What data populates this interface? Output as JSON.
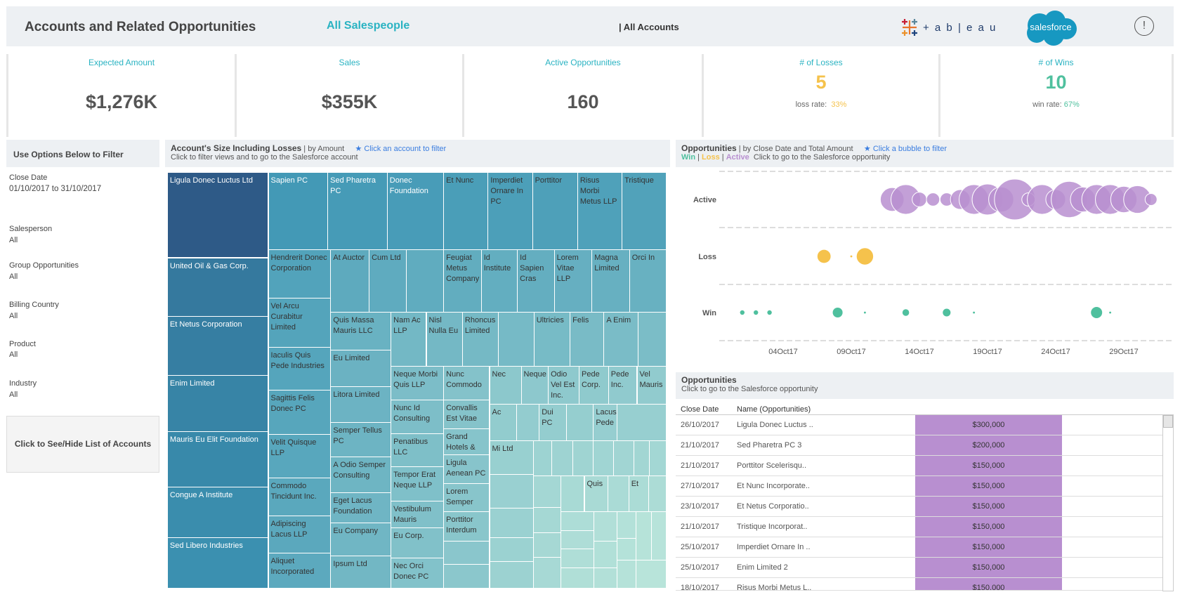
{
  "header": {
    "title": "Accounts and Related Opportunities",
    "salespeople": "All Salespeople",
    "accounts": "| All Accounts",
    "tableau_logo": "+ a b | e a u",
    "salesforce_logo": "salesforce",
    "info": "!"
  },
  "kpis": {
    "expected": {
      "label": "Expected Amount",
      "value": "$1,276K"
    },
    "sales": {
      "label": "Sales",
      "value": "$355K"
    },
    "active": {
      "label": "Active Opportunities",
      "value": "160"
    },
    "losses": {
      "label": "# of Losses",
      "value": "5",
      "rate_label": "loss rate:",
      "rate": "33%"
    },
    "wins": {
      "label": "# of Wins",
      "value": "10",
      "rate_label": "win rate:",
      "rate": "67%"
    }
  },
  "colors": {
    "accent": "#2ab3c2",
    "win": "#4fc09e",
    "loss": "#f5c24c",
    "active": "#b88fd0",
    "dark_tile": "#2e5a87",
    "light_tile": "#b5e2d7"
  },
  "filters": {
    "title": "Use Options Below to Filter",
    "items": [
      {
        "label": "Close Date",
        "value": "01/10/2017 to 31/10/2017"
      },
      {
        "label": "Salesperson",
        "value": "All"
      },
      {
        "label": "Group Opportunities",
        "value": "All"
      },
      {
        "label": "Billing Country",
        "value": "All"
      },
      {
        "label": "Product",
        "value": "All"
      },
      {
        "label": "Industry",
        "value": "All"
      }
    ],
    "toggle": "Click to See/Hide List of Accounts"
  },
  "treemap": {
    "title": "Account's Size Including Losses",
    "subtitle": "| by Amount",
    "hint": "Click an account to filter",
    "description": "Click to filter views and to go to the Salesforce account",
    "cells": [
      "Ligula Donec Luctus Ltd",
      "United Oil & Gas Corp.",
      "Et Netus Corporation",
      "Enim Limited",
      "Mauris Eu Elit Foundation",
      "Congue A Institute",
      "Sed Libero Industries",
      "Sapien PC",
      "Sed Pharetra PC",
      "Donec Foundation",
      "Et Nunc",
      "Imperdiet Ornare In PC",
      "Porttitor",
      "Risus Morbi Metus LLP",
      "Tristique",
      "Hendrerit Donec Corporation",
      "Vel Arcu Curabitur Limited",
      "Iaculis Quis Pede Industries",
      "Sagittis Felis Donec PC",
      "Velit Quisque LLP",
      "Commodo Tincidunt Inc.",
      "Adipiscing Lacus LLP",
      "Aliquet Incorporated",
      "At Auctor",
      "Cum Ltd",
      "",
      "Feugiat Metus Company",
      "Id Institute",
      "Id Sapien Cras",
      "Lorem Vitae LLP",
      "Magna Limited",
      "Orci In",
      "Quis Massa Mauris LLC",
      "Eu Limited",
      "Litora Limited",
      "Semper Tellus PC",
      "A Odio Semper Consulting",
      "Eget Lacus Foundation",
      "Eu Company",
      "Ipsum Ltd",
      "Nam Ac LLP",
      "Nisl Nulla Eu",
      "Rhoncus Limited",
      "",
      "Ultricies",
      "Felis",
      "A Enim",
      "",
      "Neque Morbi Quis LLP",
      "Nunc Id Consulting",
      "Penatibus LLC",
      "Tempor Erat Neque LLP",
      "Vestibulum Mauris",
      "Eu Corp.",
      "Nec Orci Donec PC",
      "Nunc Commodo",
      "Convallis Est Vitae",
      "Grand Hotels &",
      "Ligula Aenean PC",
      "Lorem Semper",
      "Porttitor Interdum",
      "",
      "",
      "Nec",
      "Neque",
      "Odio Vel Est Inc.",
      "Pede Corp.",
      "Pede Inc.",
      "Vel Mauris",
      "Ac",
      "",
      "Dui PC",
      "",
      "Lacus Pede",
      "",
      "Mi Ltd",
      "",
      "",
      "",
      "",
      "",
      "",
      "",
      "",
      "",
      "",
      "",
      "",
      "",
      "",
      "",
      "",
      "Quis",
      "",
      "Et",
      "",
      "",
      "",
      "",
      "",
      "",
      "",
      "",
      "",
      "",
      "",
      "",
      ""
    ]
  },
  "bubbles": {
    "title": "Opportunities",
    "subtitle": "| by Close Date and Total Amount",
    "hint": "Click a bubble to filter",
    "legend": {
      "win": "Win",
      "loss": "Loss",
      "active": "Active",
      "sep": "|"
    },
    "description": "Click to go to the Salesforce opportunity"
  },
  "chart_data": {
    "type": "scatter",
    "title": "Opportunities",
    "xlabel": "",
    "ylabel": "",
    "categories": [
      "Active",
      "Loss",
      "Win"
    ],
    "xticks": [
      "04Oct17",
      "09Oct17",
      "14Oct17",
      "19Oct17",
      "24Oct17",
      "29Oct17"
    ],
    "x_unit": "day of October 2017",
    "size_unit": "total amount ($K, estimated)",
    "grid": "dashed horizontal",
    "series": [
      {
        "name": "Active",
        "color": "#b88fd0",
        "points": [
          [
            12,
            138
          ],
          [
            13,
            216
          ],
          [
            14,
            52
          ],
          [
            15,
            43
          ],
          [
            16,
            43
          ],
          [
            17,
            96
          ],
          [
            18,
            216
          ],
          [
            19,
            235
          ],
          [
            20,
            154
          ],
          [
            21,
            409
          ],
          [
            22,
            43
          ],
          [
            23,
            216
          ],
          [
            24,
            96
          ],
          [
            25,
            322
          ],
          [
            26,
            154
          ],
          [
            27,
            216
          ],
          [
            28,
            216
          ],
          [
            29,
            170
          ],
          [
            30,
            188
          ],
          [
            31,
            35
          ]
        ]
      },
      {
        "name": "Loss",
        "color": "#f5c24c",
        "points": [
          [
            7,
            43
          ],
          [
            9,
            1
          ],
          [
            10,
            67
          ]
        ]
      },
      {
        "name": "Win",
        "color": "#4fc09e",
        "points": [
          [
            1,
            5
          ],
          [
            2,
            5
          ],
          [
            3,
            5
          ],
          [
            8,
            24
          ],
          [
            10,
            1
          ],
          [
            13,
            11
          ],
          [
            16,
            15
          ],
          [
            18,
            1
          ],
          [
            27,
            31
          ],
          [
            28,
            1
          ]
        ]
      }
    ]
  },
  "table": {
    "title": "Opportunities",
    "description": "Click to go to the Salesforce opportunity",
    "columns": [
      "Close Date",
      "Name (Opportunities)"
    ],
    "rows": [
      {
        "date": "26/10/2017",
        "name": "Ligula Donec Luctus ..",
        "amount": "$300,000"
      },
      {
        "date": "21/10/2017",
        "name": "Sed Pharetra PC 3",
        "amount": "$200,000"
      },
      {
        "date": "21/10/2017",
        "name": "Porttitor Scelerisqu..",
        "amount": "$150,000"
      },
      {
        "date": "27/10/2017",
        "name": "Et Nunc Incorporate..",
        "amount": "$150,000"
      },
      {
        "date": "23/10/2017",
        "name": "Et Netus Corporatio..",
        "amount": "$150,000"
      },
      {
        "date": "21/10/2017",
        "name": "Tristique Incorporat..",
        "amount": "$150,000"
      },
      {
        "date": "25/10/2017",
        "name": "Imperdiet Ornare In ..",
        "amount": "$150,000"
      },
      {
        "date": "25/10/2017",
        "name": "Enim Limited 2",
        "amount": "$150,000"
      },
      {
        "date": "18/10/2017",
        "name": "Risus Morbi Metus L..",
        "amount": "$150,000"
      }
    ]
  }
}
